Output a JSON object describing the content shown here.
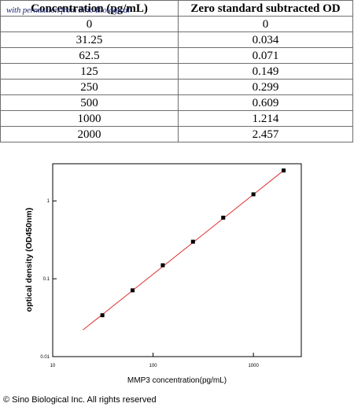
{
  "watermark": "with permission from Sino Biological",
  "table": {
    "headers": [
      "Concentration (pg/mL)",
      "Zero standard subtracted OD"
    ],
    "rows": [
      [
        "0",
        "0"
      ],
      [
        "31.25",
        "0.034"
      ],
      [
        "62.5",
        "0.071"
      ],
      [
        "125",
        "0.149"
      ],
      [
        "250",
        "0.299"
      ],
      [
        "500",
        "0.609"
      ],
      [
        "1000",
        "1.214"
      ],
      [
        "2000",
        "2.457"
      ]
    ]
  },
  "chart_data": {
    "type": "scatter",
    "xlabel": "MMP3  concentration(pg/mL)",
    "ylabel": "optical density (OD450nm)",
    "xscale": "log",
    "yscale": "log",
    "xlim": [
      10,
      3000
    ],
    "ylim": [
      0.01,
      3
    ],
    "xticks": [
      10,
      100,
      1000
    ],
    "xtick_labels": [
      "10",
      "100",
      "1000"
    ],
    "yticks": [
      0.01,
      0.1,
      1
    ],
    "ytick_labels": [
      "0.01",
      "0.1",
      "1"
    ],
    "points": {
      "x": [
        31.25,
        62.5,
        125,
        250,
        500,
        1000,
        2000
      ],
      "y": [
        0.034,
        0.071,
        0.149,
        0.299,
        0.609,
        1.214,
        2.457
      ]
    },
    "fit_line": {
      "x": [
        20,
        2000
      ],
      "y": [
        0.022,
        2.457
      ],
      "color": "#e03030"
    },
    "marker_color": "#000000",
    "grid": false
  },
  "copyright": "© Sino Biological Inc. All rights reserved"
}
